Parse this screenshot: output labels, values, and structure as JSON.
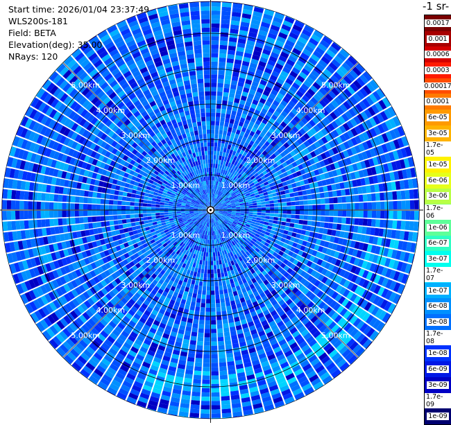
{
  "info": {
    "start_time_label": "Start time:",
    "start_time": "2026/01/04 23:37:49",
    "instrument": "WLS200s-181",
    "field_label": "Field:",
    "field": "BETA",
    "elevation_label": "Elevation(deg):",
    "elevation": "35.00",
    "nrays_label": "NRays:",
    "nrays": "120"
  },
  "colorbar": {
    "units_label": "-1 sr-",
    "labels": [
      "0.0017",
      "0.001",
      "0.0006",
      "0.0003",
      "0.00017",
      "0.0001",
      "6e-05",
      "3e-05",
      "1.7e-05",
      "1e-05",
      "6e-06",
      "3e-06",
      "1.7e-06",
      "1e-06",
      "6e-07",
      "3e-07",
      "1.7e-07",
      "1e-07",
      "6e-08",
      "3e-08",
      "1.7e-08",
      "1e-08",
      "6e-09",
      "3e-09",
      "1.7e-09",
      "1e-09"
    ],
    "colors": [
      "#7a0000",
      "#a80000",
      "#d40000",
      "#ff1a00",
      "#ff4d00",
      "#ff7a00",
      "#ff9a00",
      "#ffb300",
      "#ffd500",
      "#fff200",
      "#e6ff1a",
      "#b8ff45",
      "#8cff6e",
      "#5eff99",
      "#2effc4",
      "#00ffee",
      "#00d5ff",
      "#00b0ff",
      "#0090ff",
      "#0070ff",
      "#0050ff",
      "#0032ff",
      "#0018e6",
      "#0000c4",
      "#00009a",
      "#000070"
    ]
  },
  "chart_data": {
    "type": "ppi",
    "field": "BETA",
    "elevation_deg": 35.0,
    "n_rays": 120,
    "center_marker": "radar",
    "range_rings_km": [
      1,
      2,
      3,
      4,
      5
    ],
    "range_ring_labels": [
      "1.00km",
      "2.00km",
      "3.00km",
      "4.00km",
      "5.00km"
    ],
    "max_range_km": 5.9,
    "dominant_value_range": [
      1e-08,
      6e-08
    ],
    "enhanced_arc": {
      "range_km": [
        4.5,
        5.3
      ],
      "azimuth_deg": [
        80,
        200
      ],
      "value": 1.7e-07
    }
  }
}
